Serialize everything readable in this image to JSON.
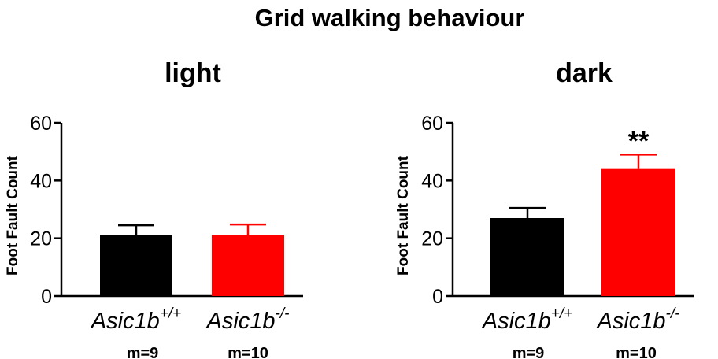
{
  "title": "Grid walking behaviour",
  "chart_data": [
    {
      "type": "bar",
      "title": "light",
      "ylabel": "Foot Fault Count",
      "ylim": [
        0,
        60
      ],
      "yticks": [
        0,
        20,
        40,
        60
      ],
      "categories": [
        {
          "base": "Asic1b",
          "sup": "+/+"
        },
        {
          "base": "Asic1b",
          "sup": "-/-"
        }
      ],
      "values": [
        21,
        21
      ],
      "error": [
        3.5,
        3.8
      ],
      "colors": [
        "#000000",
        "#ff0000"
      ],
      "n_labels": [
        "m=9",
        "m=10"
      ],
      "annotations": [
        "",
        ""
      ]
    },
    {
      "type": "bar",
      "title": "dark",
      "ylabel": "Foot Fault Count",
      "ylim": [
        0,
        60
      ],
      "yticks": [
        0,
        20,
        40,
        60
      ],
      "categories": [
        {
          "base": "Asic1b",
          "sup": "+/+"
        },
        {
          "base": "Asic1b",
          "sup": "-/-"
        }
      ],
      "values": [
        27,
        44
      ],
      "error": [
        3.5,
        5
      ],
      "colors": [
        "#000000",
        "#ff0000"
      ],
      "n_labels": [
        "m=9",
        "m=10"
      ],
      "annotations": [
        "",
        "**"
      ]
    }
  ]
}
